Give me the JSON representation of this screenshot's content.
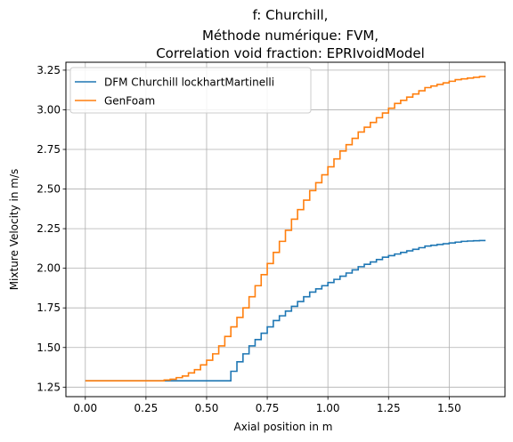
{
  "chart_data": {
    "type": "line",
    "title_lines": [
      "f: Churchill,",
      "Méthode numérique: FVM,",
      "Correlation void fraction: EPRIvoidModel"
    ],
    "xlabel": "Axial position in m",
    "ylabel": "Mixture Velocity in m/s",
    "xlim": [
      -0.08,
      1.73
    ],
    "ylim": [
      1.19,
      3.3
    ],
    "xticks": [
      0.0,
      0.25,
      0.5,
      0.75,
      1.0,
      1.25,
      1.5
    ],
    "xtick_labels": [
      "0.00",
      "0.25",
      "0.50",
      "0.75",
      "1.00",
      "1.25",
      "1.50"
    ],
    "yticks": [
      1.25,
      1.5,
      1.75,
      2.0,
      2.25,
      2.5,
      2.75,
      3.0,
      3.25
    ],
    "ytick_labels": [
      "1.25",
      "1.50",
      "1.75",
      "2.00",
      "2.25",
      "2.50",
      "2.75",
      "3.00",
      "3.25"
    ],
    "grid": true,
    "legend_position": "top-left",
    "step": true,
    "series": [
      {
        "name": "DFM Churchill lockhartMartinelli",
        "color": "#1f77b4",
        "x": [
          0.0,
          0.6,
          0.625,
          0.65,
          0.675,
          0.7,
          0.725,
          0.75,
          0.775,
          0.8,
          0.825,
          0.85,
          0.875,
          0.9,
          0.925,
          0.95,
          0.975,
          1.0,
          1.025,
          1.05,
          1.075,
          1.1,
          1.125,
          1.15,
          1.175,
          1.2,
          1.225,
          1.25,
          1.275,
          1.3,
          1.325,
          1.35,
          1.375,
          1.4,
          1.425,
          1.45,
          1.475,
          1.5,
          1.525,
          1.55,
          1.575,
          1.6,
          1.625,
          1.65
        ],
        "y": [
          1.29,
          1.35,
          1.41,
          1.46,
          1.51,
          1.55,
          1.59,
          1.63,
          1.67,
          1.7,
          1.73,
          1.76,
          1.79,
          1.82,
          1.85,
          1.87,
          1.89,
          1.91,
          1.93,
          1.95,
          1.97,
          1.99,
          2.01,
          2.025,
          2.04,
          2.055,
          2.07,
          2.08,
          2.09,
          2.1,
          2.11,
          2.12,
          2.13,
          2.14,
          2.145,
          2.15,
          2.155,
          2.16,
          2.165,
          2.17,
          2.172,
          2.174,
          2.175,
          2.175
        ]
      },
      {
        "name": "GenFoam",
        "color": "#ff7f0e",
        "x": [
          0.0,
          0.2,
          0.225,
          0.25,
          0.275,
          0.3,
          0.325,
          0.35,
          0.375,
          0.4,
          0.425,
          0.45,
          0.475,
          0.5,
          0.525,
          0.55,
          0.575,
          0.6,
          0.625,
          0.65,
          0.675,
          0.7,
          0.725,
          0.75,
          0.775,
          0.8,
          0.825,
          0.85,
          0.875,
          0.9,
          0.925,
          0.95,
          0.975,
          1.0,
          1.025,
          1.05,
          1.075,
          1.1,
          1.125,
          1.15,
          1.175,
          1.2,
          1.225,
          1.25,
          1.275,
          1.3,
          1.325,
          1.35,
          1.375,
          1.4,
          1.425,
          1.45,
          1.475,
          1.5,
          1.525,
          1.55,
          1.575,
          1.6,
          1.625,
          1.65
        ],
        "y": [
          1.29,
          1.29,
          1.29,
          1.29,
          1.29,
          1.29,
          1.295,
          1.3,
          1.31,
          1.32,
          1.34,
          1.36,
          1.39,
          1.42,
          1.46,
          1.51,
          1.57,
          1.63,
          1.69,
          1.75,
          1.82,
          1.89,
          1.96,
          2.03,
          2.1,
          2.17,
          2.24,
          2.31,
          2.37,
          2.43,
          2.49,
          2.54,
          2.59,
          2.64,
          2.69,
          2.74,
          2.78,
          2.82,
          2.86,
          2.89,
          2.92,
          2.95,
          2.98,
          3.01,
          3.04,
          3.06,
          3.08,
          3.1,
          3.12,
          3.14,
          3.15,
          3.16,
          3.17,
          3.18,
          3.19,
          3.195,
          3.2,
          3.205,
          3.21,
          3.21
        ]
      }
    ]
  }
}
